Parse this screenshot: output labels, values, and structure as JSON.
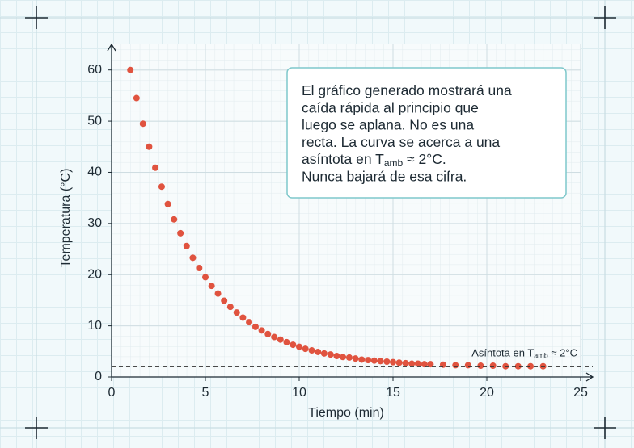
{
  "chart_data": {
    "type": "scatter",
    "x_label": "Tiempo (min)",
    "y_label": "Temperatura (°C)",
    "x": [
      1,
      1.33,
      1.67,
      2,
      2.33,
      2.67,
      3,
      3.33,
      3.67,
      4,
      4.33,
      4.67,
      5,
      5.33,
      5.67,
      6,
      6.33,
      6.67,
      7,
      7.33,
      7.67,
      8,
      8.33,
      8.67,
      9,
      9.33,
      9.67,
      10,
      10.33,
      10.67,
      11,
      11.33,
      11.67,
      12,
      12.33,
      12.67,
      13,
      13.33,
      13.67,
      14,
      14.33,
      14.67,
      15,
      15.33,
      15.67,
      16,
      16.33,
      16.67,
      17,
      17.67,
      18.33,
      19,
      19.67,
      20.33,
      21,
      21.67,
      22.33,
      23
    ],
    "values": [
      60,
      54.5,
      49.5,
      45.0,
      40.9,
      37.2,
      33.8,
      30.8,
      28.1,
      25.6,
      23.3,
      21.3,
      19.5,
      17.8,
      16.3,
      14.9,
      13.7,
      12.6,
      11.6,
      10.7,
      9.8,
      9.1,
      8.4,
      7.8,
      7.3,
      6.8,
      6.3,
      5.9,
      5.5,
      5.2,
      4.9,
      4.6,
      4.4,
      4.1,
      3.9,
      3.8,
      3.6,
      3.4,
      3.3,
      3.2,
      3.1,
      3.0,
      2.9,
      2.8,
      2.7,
      2.6,
      2.6,
      2.5,
      2.5,
      2.4,
      2.3,
      2.3,
      2.2,
      2.2,
      2.1,
      2.1,
      2.1,
      2.1
    ],
    "color": "#e0533f",
    "xlim": [
      0,
      25
    ],
    "ylim": [
      0,
      65
    ],
    "xticks": [
      0,
      5,
      10,
      15,
      20,
      25
    ],
    "yticks": [
      0,
      10,
      20,
      30,
      40,
      50,
      60
    ],
    "grid": true,
    "asymptote": {
      "value": 2,
      "label": [
        "Asíntota en T",
        "amb",
        " ≈ 2°C"
      ]
    },
    "annotation": {
      "lines": [
        [
          "El gráfico generado mostrará una"
        ],
        [
          "caída rápida al principio que"
        ],
        [
          "luego se aplana. No es una"
        ],
        [
          "recta. La curva se acerca a una"
        ],
        [
          "asíntota en T",
          "amb",
          " ≈ 2°C."
        ],
        [
          "Nunca bajará de esa cifra."
        ]
      ]
    }
  }
}
